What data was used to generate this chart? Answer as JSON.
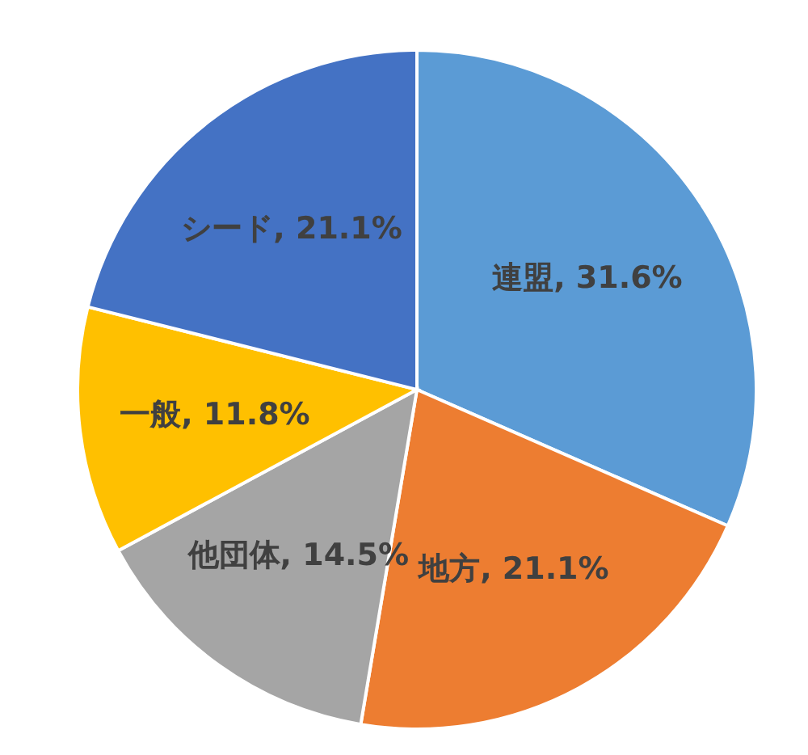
{
  "chart_data": {
    "type": "pie",
    "categories": [
      "連盟",
      "地方",
      "他団体",
      "一般",
      "シード"
    ],
    "values": [
      31.6,
      21.1,
      14.5,
      11.8,
      21.1
    ],
    "colors": [
      "#5b9bd5",
      "#ed7d31",
      "#a5a5a5",
      "#ffc000",
      "#4472c4"
    ],
    "value_labels": [
      "31.6%",
      "21.1%",
      "14.5%",
      "11.8%",
      "21.1%"
    ],
    "legend": false
  }
}
